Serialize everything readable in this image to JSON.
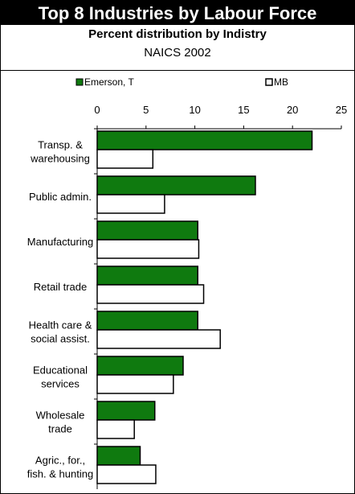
{
  "header": {
    "title": "Top 8 Industries by Labour Force",
    "subtitle": "Percent distribution by Indistry",
    "subtitle2": "NAICS 2002"
  },
  "colors": {
    "series1": "#0f7a0f",
    "series2": "#ffffff",
    "title_bg": "#000000"
  },
  "chart_data": {
    "type": "bar",
    "orientation": "horizontal",
    "categories": [
      [
        "Transp. &",
        "warehousing"
      ],
      [
        "Public admin."
      ],
      [
        "Manufacturing"
      ],
      [
        "Retail trade"
      ],
      [
        "Health care &",
        "social assist."
      ],
      [
        "Educational",
        "services"
      ],
      [
        "Wholesale",
        "trade"
      ],
      [
        "Agric., for.,",
        "fish. & hunting"
      ]
    ],
    "series": [
      {
        "name": "Emerson, T",
        "values": [
          22.0,
          16.2,
          10.3,
          10.3,
          10.3,
          8.8,
          5.9,
          4.4
        ]
      },
      {
        "name": "MB",
        "values": [
          5.7,
          6.9,
          10.4,
          10.9,
          12.6,
          7.8,
          3.8,
          6.0
        ]
      }
    ],
    "xlim": [
      0,
      25
    ],
    "xticks": [
      "0",
      "5",
      "10",
      "15",
      "20",
      "25"
    ],
    "legend_position": "top",
    "grid": false
  }
}
